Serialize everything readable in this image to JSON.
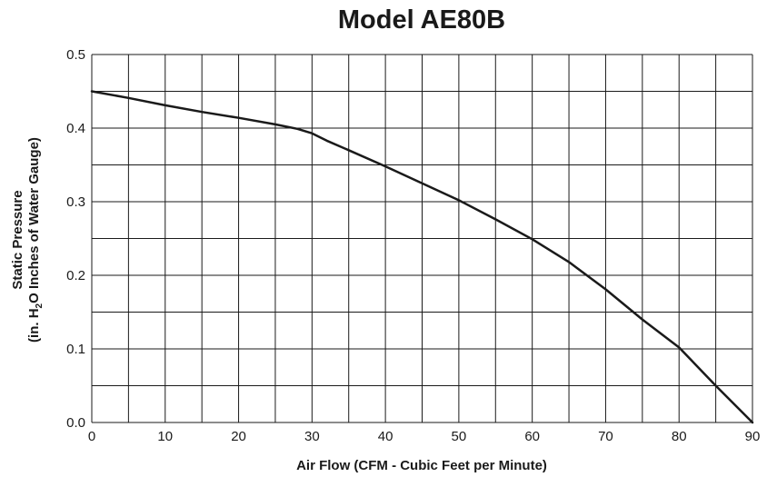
{
  "chart_data": {
    "type": "line",
    "title": "Model AE80B",
    "xlabel": "Air Flow (CFM - Cubic Feet per Minute)",
    "ylabel_line1": "Static Pressure",
    "ylabel_line2_pre": "(in. H",
    "ylabel_line2_sub": "2",
    "ylabel_line2_post": "O Inches of Water Gauge)",
    "xlim": [
      0,
      90
    ],
    "ylim": [
      0,
      0.5
    ],
    "x_ticks": [
      "0",
      "10",
      "20",
      "30",
      "40",
      "50",
      "60",
      "70",
      "80",
      "90"
    ],
    "y_ticks": [
      "0.0",
      "0.1",
      "0.2",
      "0.3",
      "0.4",
      "0.5"
    ],
    "grid": true,
    "grid_x_step": 5,
    "grid_y_step": 0.05,
    "series": [
      {
        "x": [
          0,
          5,
          10,
          15,
          20,
          25,
          28,
          30,
          32,
          35,
          40,
          45,
          50,
          55,
          60,
          65,
          70,
          75,
          80,
          85,
          90
        ],
        "y": [
          0.45,
          0.441,
          0.431,
          0.422,
          0.414,
          0.405,
          0.399,
          0.393,
          0.383,
          0.37,
          0.348,
          0.325,
          0.302,
          0.276,
          0.249,
          0.218,
          0.181,
          0.14,
          0.102,
          0.05,
          0.0
        ],
        "color": "#1a1a1a"
      }
    ]
  }
}
